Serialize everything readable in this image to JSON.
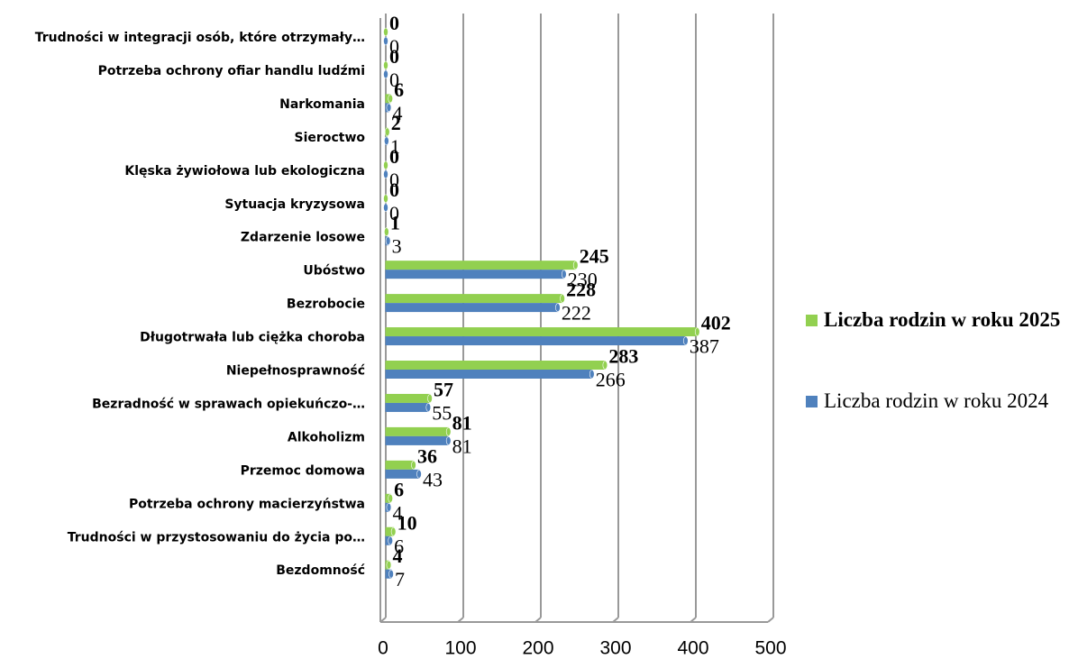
{
  "chart_data": {
    "type": "bar",
    "orientation": "horizontal",
    "categories": [
      "Trudności w integracji osób, które otrzymały…",
      "Potrzeba ochrony ofiar handlu ludźmi",
      "Narkomania",
      "Sieroctwo",
      "Klęska żywiołowa lub ekologiczna",
      "Sytuacja kryzysowa",
      "Zdarzenie losowe",
      "Ubóstwo",
      "Bezrobocie",
      "Długotrwała lub ciężka choroba",
      "Niepełnosprawność",
      "Bezradność w sprawach opiekuńczo-…",
      "Alkoholizm",
      "Przemoc domowa",
      "Potrzeba ochrony macierzyństwa",
      "Trudności w przystosowaniu do życia po…",
      "Bezdomność"
    ],
    "series": [
      {
        "name": "Liczba rodzin w roku 2025",
        "color": "#92d050",
        "values": [
          0,
          0,
          6,
          2,
          0,
          0,
          1,
          245,
          228,
          402,
          283,
          57,
          81,
          36,
          6,
          10,
          4
        ]
      },
      {
        "name": "Liczba rodzin w roku 2024",
        "color": "#4f81bd",
        "values": [
          0,
          0,
          4,
          1,
          0,
          0,
          3,
          230,
          222,
          387,
          266,
          55,
          81,
          43,
          4,
          6,
          7
        ]
      }
    ],
    "xlim": [
      0,
      500
    ],
    "xticks": [
      0,
      100,
      200,
      300,
      400,
      500
    ],
    "grid": true,
    "legend": "right"
  }
}
